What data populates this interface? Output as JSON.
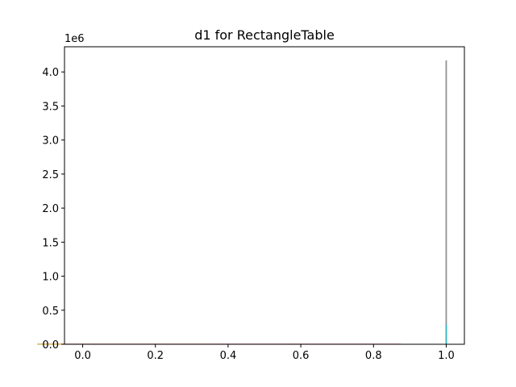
{
  "chart_data": {
    "type": "bar",
    "title": "d1 for RectangleTable",
    "xlabel": "",
    "ylabel": "",
    "x_ticks": [
      "0.0",
      "0.2",
      "0.4",
      "0.6",
      "0.8",
      "1.0"
    ],
    "y_ticks": [
      "0.0",
      "0.5",
      "1.0",
      "1.5",
      "2.0",
      "2.5",
      "3.0",
      "3.5",
      "4.0"
    ],
    "y_offset_label": "1e6",
    "xlim": [
      -0.05,
      1.05
    ],
    "ylim": [
      0,
      4.37
    ],
    "y_scale": 1000000,
    "grid": false,
    "series": [
      {
        "values_x": [
          1.0
        ],
        "values_y": [
          4170000
        ],
        "width": 0.004,
        "color": "#7f7f7f"
      },
      {
        "values_x": [
          1.0
        ],
        "values_y": [
          290000
        ],
        "width": 0.003,
        "color": "#17becf"
      },
      {
        "values_x": [
          0.0,
          0.25,
          0.5,
          0.75
        ],
        "values_y": [
          8000,
          8000,
          8000,
          8000
        ],
        "width": 0.25,
        "color": "#d62728"
      },
      {
        "values_x": [
          0.0,
          0.25
        ],
        "values_y": [
          6000,
          6000
        ],
        "width": 0.25,
        "color": "#bcbd22"
      }
    ]
  }
}
